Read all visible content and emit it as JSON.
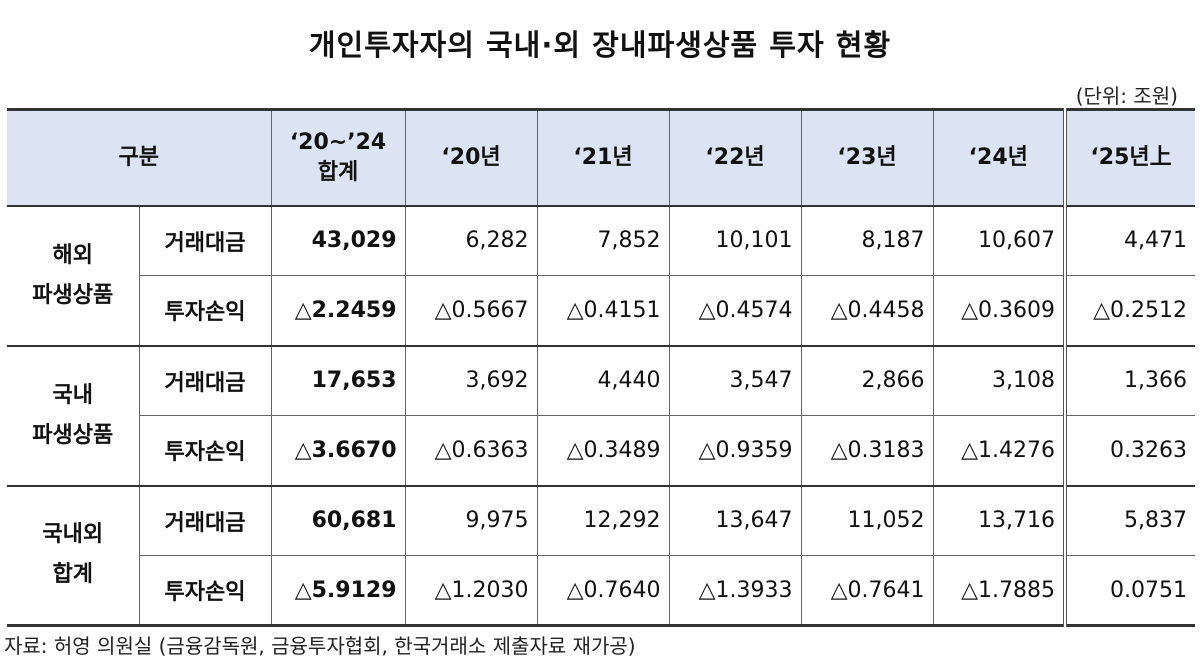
{
  "title": "개인투자자의 국내·외 장내파생상품 투자 현황",
  "unit": "(단위: 조원)",
  "table": {
    "headers": {
      "category": "구분",
      "total_line1": "‘20~’24",
      "total_line2": "합계",
      "y20": "‘20년",
      "y21": "‘21년",
      "y22": "‘22년",
      "y23": "‘23년",
      "y24": "‘24년",
      "y25": "‘25년上"
    },
    "groups": [
      {
        "name_line1": "해외",
        "name_line2": "파생상품",
        "rows": [
          {
            "label": "거래대금",
            "values": [
              "43,029",
              "6,282",
              "7,852",
              "10,101",
              "8,187",
              "10,607",
              "4,471"
            ]
          },
          {
            "label": "투자손익",
            "values": [
              "△2.2459",
              "△0.5667",
              "△0.4151",
              "△0.4574",
              "△0.4458",
              "△0.3609",
              "△0.2512"
            ]
          }
        ]
      },
      {
        "name_line1": "국내",
        "name_line2": "파생상품",
        "rows": [
          {
            "label": "거래대금",
            "values": [
              "17,653",
              "3,692",
              "4,440",
              "3,547",
              "2,866",
              "3,108",
              "1,366"
            ]
          },
          {
            "label": "투자손익",
            "values": [
              "△3.6670",
              "△0.6363",
              "△0.3489",
              "△0.9359",
              "△0.3183",
              "△1.4276",
              "0.3263"
            ]
          }
        ]
      },
      {
        "name_line1": "국내외",
        "name_line2": "합계",
        "rows": [
          {
            "label": "거래대금",
            "values": [
              "60,681",
              "9,975",
              "12,292",
              "13,647",
              "11,052",
              "13,716",
              "5,837"
            ]
          },
          {
            "label": "투자손익",
            "values": [
              "△5.9129",
              "△1.2030",
              "△0.7640",
              "△1.3933",
              "△0.7641",
              "△1.7885",
              "0.0751"
            ]
          }
        ]
      }
    ]
  },
  "source": "자료: 허영 의원실 (금융감독원, 금융투자협회, 한국거래소 제출자료 재가공)"
}
